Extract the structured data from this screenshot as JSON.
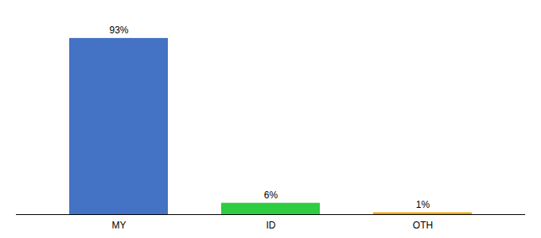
{
  "chart_data": {
    "type": "bar",
    "categories": [
      "MY",
      "ID",
      "OTH"
    ],
    "values": [
      93,
      6,
      1
    ],
    "value_labels": [
      "93%",
      "6%",
      "1%"
    ],
    "colors": [
      "#4472c4",
      "#2ecc40",
      "#f0a500"
    ],
    "ylim": [
      0,
      103
    ],
    "data_labels": true,
    "tick_labels": "x",
    "grid": false
  }
}
